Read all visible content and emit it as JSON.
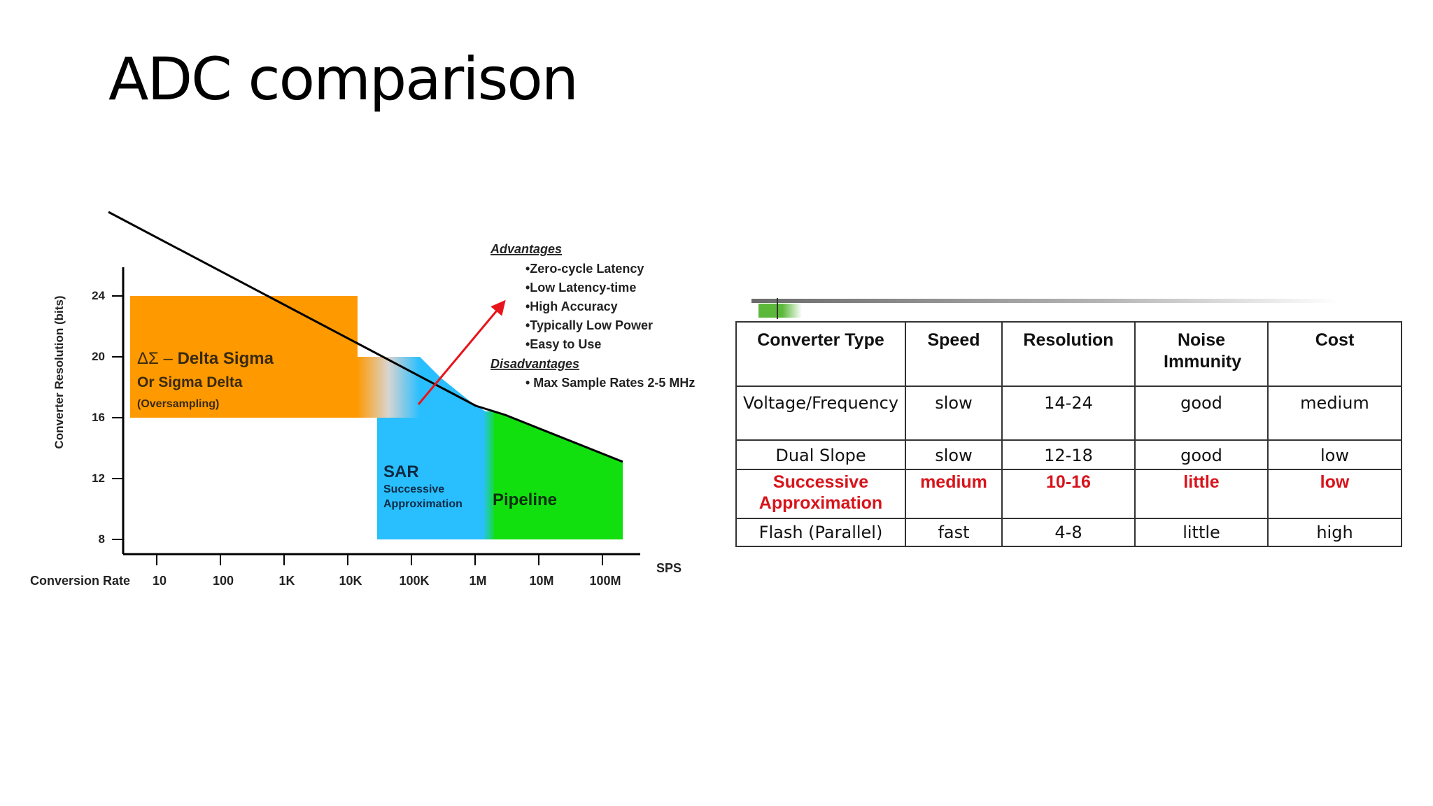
{
  "slide": {
    "title": "ADC comparison"
  },
  "chart_data": {
    "type": "area",
    "title": "",
    "ylabel": "Converter Resolution (bits)",
    "xlabel": "Conversion Rate",
    "x_unit": "SPS",
    "x_scale": "log",
    "x_ticks": [
      "10",
      "100",
      "1K",
      "10K",
      "100K",
      "1M",
      "10M",
      "100M"
    ],
    "y_ticks": [
      24,
      20,
      16,
      12,
      8
    ],
    "ylim": [
      8,
      24
    ],
    "regions": [
      {
        "name": "Delta Sigma",
        "label_prefix": "ΔΣ – ",
        "label_main": "Delta Sigma",
        "label_line2": "Or Sigma Delta",
        "label_line3": "(Oversampling)",
        "color": "#FF9900",
        "x_range": [
          "10",
          "200K"
        ],
        "y_range": [
          16,
          24
        ]
      },
      {
        "name": "SAR",
        "label_main": "SAR",
        "label_line2": "Successive",
        "label_line3": "Approximation",
        "color": "#29BFFF",
        "x_range": [
          "50K",
          "3M"
        ],
        "y_range": [
          8,
          16
        ]
      },
      {
        "name": "Pipeline",
        "label_main": "Pipeline",
        "color": "#11E00E",
        "x_range": [
          "2M",
          "100M"
        ],
        "y_range": [
          8,
          15
        ]
      }
    ],
    "boundary_line": {
      "description": "upper limit of resolution vs conversion rate"
    },
    "annotation": {
      "advantages_title": "Advantages",
      "advantages": [
        "•Zero-cycle Latency",
        "•Low Latency-time",
        "•High Accuracy",
        "•Typically Low Power",
        "•Easy to Use"
      ],
      "disadvantages_title": "Disadvantages",
      "disadvantages": [
        "• Max Sample Rates 2-5 MHz"
      ]
    }
  },
  "table": {
    "headers": [
      "Converter Type",
      "Speed",
      "Resolution",
      "Noise Immunity",
      "Cost"
    ],
    "rows": [
      [
        "Voltage/Frequency",
        "slow",
        "14-24",
        "good",
        "medium"
      ],
      [
        "Dual Slope",
        "slow",
        "12-18",
        "good",
        "low"
      ],
      [
        "Successive Approximation",
        "medium",
        "10-16",
        "little",
        "low"
      ],
      [
        "Flash (Parallel)",
        "fast",
        "4-8",
        "little",
        "high"
      ]
    ],
    "highlight_color": "#D8141B"
  }
}
